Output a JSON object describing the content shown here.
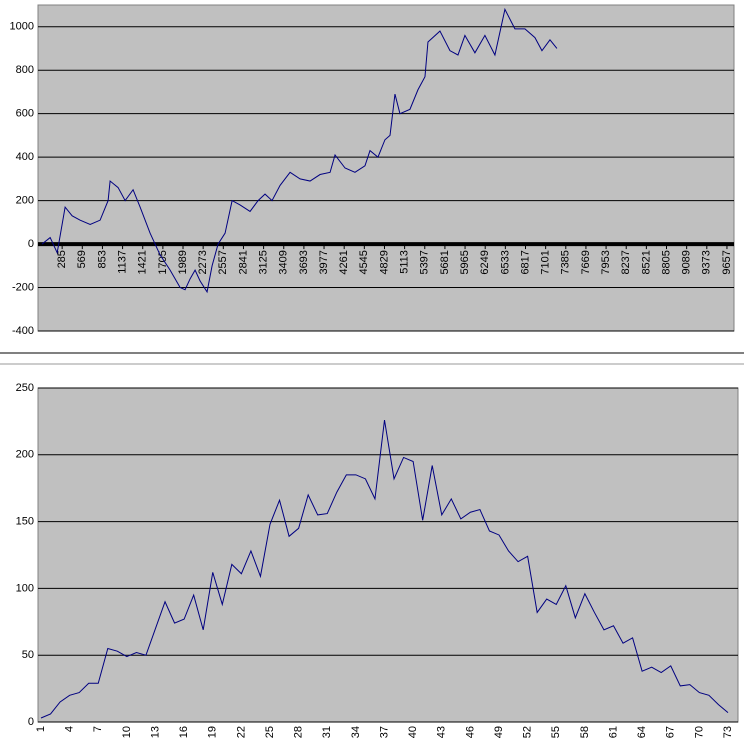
{
  "chart_data": [
    {
      "type": "line",
      "x": [
        1,
        116,
        215,
        327,
        426,
        539,
        680,
        820,
        933,
        961,
        1074,
        1173,
        1285,
        1384,
        1525,
        1666,
        1807,
        1948,
        2018,
        2089,
        2159,
        2230,
        2328,
        2399,
        2483,
        2582,
        2681,
        2793,
        2934,
        3047,
        3145,
        3244,
        3357,
        3498,
        3639,
        3780,
        3921,
        4062,
        4132,
        4273,
        4413,
        4554,
        4625,
        4737,
        4836,
        4907,
        4977,
        5047,
        5188,
        5301,
        5400,
        5442,
        5611,
        5752,
        5865,
        5963,
        6104,
        6245,
        6386,
        6527,
        6668,
        6809,
        6950,
        7049,
        7162,
        7260
      ],
      "series": [
        {
          "color": "#000080",
          "values": [
            0,
            30,
            -40,
            170,
            130,
            110,
            90,
            110,
            200,
            290,
            260,
            200,
            250,
            170,
            50,
            -50,
            -120,
            -200,
            -210,
            -160,
            -120,
            -170,
            -220,
            -100,
            0,
            50,
            200,
            180,
            150,
            200,
            230,
            200,
            270,
            330,
            300,
            290,
            320,
            330,
            410,
            350,
            330,
            360,
            430,
            400,
            480,
            500,
            690,
            600,
            620,
            710,
            770,
            930,
            980,
            890,
            870,
            960,
            880,
            960,
            870,
            1080,
            990,
            990,
            950,
            890,
            940,
            900
          ]
        }
      ],
      "xlim": [
        1,
        9700
      ],
      "xticks": [
        285,
        569,
        853,
        1137,
        1421,
        1705,
        1989,
        2273,
        2557,
        2841,
        3125,
        3409,
        3693,
        3977,
        4261,
        4545,
        4829,
        5113,
        5397,
        5681,
        5965,
        6249,
        6533,
        6817,
        7101,
        7385,
        7669,
        7953,
        8237,
        8521,
        8805,
        9089,
        9373,
        9657
      ],
      "ylim": [
        -400,
        1100
      ],
      "yticks": [
        -400,
        -200,
        0,
        200,
        400,
        600,
        800,
        1000
      ],
      "grid": true
    },
    {
      "type": "line",
      "categories": [
        1,
        null,
        null,
        4,
        null,
        null,
        7,
        null,
        null,
        10,
        null,
        null,
        13,
        null,
        null,
        16,
        null,
        null,
        19,
        null,
        null,
        22,
        null,
        null,
        25,
        null,
        null,
        28,
        null,
        null,
        31,
        null,
        null,
        34,
        null,
        null,
        37,
        null,
        null,
        40,
        null,
        null,
        43,
        null,
        null,
        46,
        null,
        null,
        49,
        null,
        null,
        52,
        null,
        null,
        55,
        null,
        null,
        58,
        null,
        null,
        61,
        null,
        null,
        64,
        null,
        null,
        67,
        null,
        null,
        70,
        null,
        null,
        73
      ],
      "series": [
        {
          "color": "#000080",
          "values": [
            3,
            6,
            15,
            20,
            22,
            29,
            29,
            55,
            53,
            49,
            52,
            50,
            70,
            90,
            74,
            77,
            95,
            69,
            112,
            88,
            118,
            111,
            128,
            109,
            148,
            166,
            139,
            145,
            170,
            155,
            156,
            172,
            185,
            185,
            182,
            167,
            226,
            182,
            198,
            195,
            151,
            192,
            155,
            167,
            152,
            157,
            159,
            143,
            140,
            128,
            120,
            124,
            82,
            92,
            88,
            102,
            78,
            96,
            82,
            69,
            72,
            59,
            63,
            38,
            41,
            37,
            42,
            27,
            28,
            22,
            20,
            13,
            7
          ]
        }
      ],
      "ylim": [
        0,
        250
      ],
      "yticks": [
        0,
        50,
        100,
        150,
        200,
        250
      ],
      "grid": true
    }
  ]
}
